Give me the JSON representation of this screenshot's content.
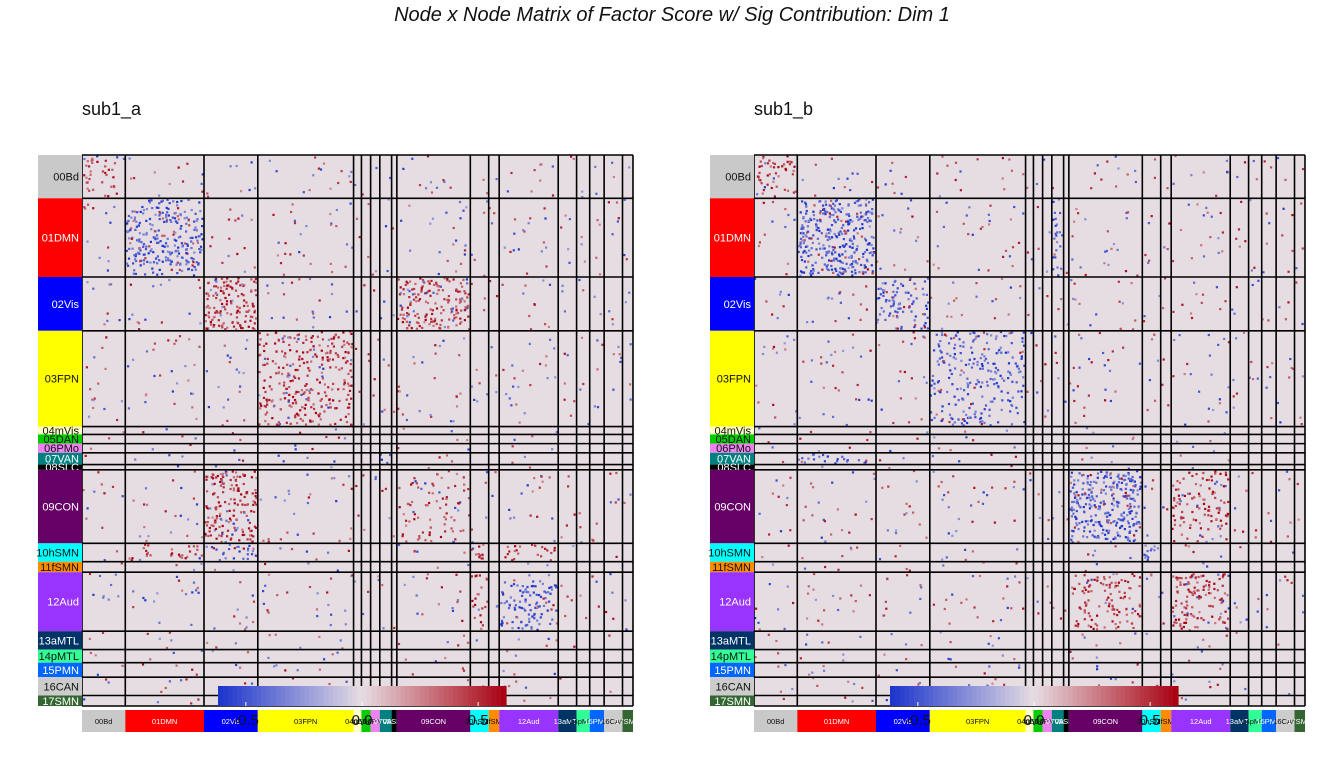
{
  "title": "Node x Node Matrix of Factor Score w/ Sig Contribution: Dim 1",
  "chart_data": [
    {
      "type": "heatmap",
      "panel_title": "sub1_a",
      "legend_ticks": [
        -0.5,
        0.0,
        0.5
      ],
      "legend_tick_labels": [
        "-0.5",
        "0.0",
        "0.5"
      ],
      "color_scale": {
        "low": "#1a33cc",
        "mid": "#e6dde2",
        "high": "#a80010",
        "limits": [
          -0.62,
          0.62
        ]
      },
      "networks": [
        "00Bd",
        "01DMN",
        "02Vis",
        "03FPN",
        "04mVis",
        "05DAN",
        "06PMo",
        "07VAN",
        "08SLC",
        "09CON",
        "10hSMN",
        "11fSMN",
        "12Aud",
        "13aMTL",
        "14pMTL",
        "15PMN",
        "16CAN",
        "17SMN"
      ],
      "network_colors": [
        "#c9c9c9",
        "#ff0000",
        "#0000ff",
        "#ffff00",
        "#ffffcc",
        "#00cc00",
        "#ee82ee",
        "#008080",
        "#000000",
        "#660066",
        "#00ffff",
        "#ff8c00",
        "#9933ff",
        "#003366",
        "#33ff99",
        "#0066ff",
        "#cccccc",
        "#336633"
      ],
      "block_summary_values": [
        [
          0.15,
          0,
          0,
          0,
          0,
          0,
          0,
          0,
          0,
          0,
          0,
          0,
          0,
          0,
          0,
          0,
          0,
          0
        ],
        [
          0,
          -0.35,
          0,
          0,
          0,
          0,
          0,
          0,
          0,
          0,
          0,
          0,
          0,
          0,
          0,
          0,
          0,
          0
        ],
        [
          0,
          0,
          0.4,
          0,
          0,
          0,
          0,
          0,
          0,
          0.35,
          0,
          0,
          0,
          0,
          0,
          0,
          0,
          0
        ],
        [
          0,
          0,
          0,
          0.25,
          0,
          0,
          0,
          0,
          0,
          0,
          0,
          0,
          0,
          0,
          0,
          0,
          0,
          0
        ],
        [
          0,
          0,
          0,
          0,
          0,
          0,
          0,
          0,
          0,
          0,
          0,
          0,
          0,
          0,
          0,
          0,
          0,
          0
        ],
        [
          0,
          0,
          0,
          0,
          0,
          0,
          0,
          0,
          0,
          0,
          0,
          0,
          0,
          0,
          0,
          0,
          0,
          0
        ],
        [
          0,
          0,
          0,
          0,
          0,
          0,
          0,
          0,
          0,
          0,
          0,
          0,
          0,
          0,
          0,
          0,
          0,
          0
        ],
        [
          0,
          0,
          0,
          0,
          0,
          0,
          0,
          -0.25,
          0,
          0,
          0,
          0,
          0,
          0,
          0,
          0,
          0,
          0
        ],
        [
          0,
          0,
          0,
          0,
          0,
          0,
          0,
          0,
          0,
          0,
          0,
          0,
          0,
          0,
          0,
          0,
          0,
          0
        ],
        [
          0,
          0,
          0.35,
          0,
          0,
          0,
          0,
          0,
          0,
          0.1,
          0,
          0,
          0,
          0,
          0,
          0,
          0,
          0
        ],
        [
          0,
          0.15,
          -0.2,
          0,
          0,
          0,
          0,
          0,
          0,
          0,
          0.3,
          0,
          0.15,
          0,
          0,
          0,
          0,
          0
        ],
        [
          0,
          0,
          0,
          0,
          0,
          0,
          0,
          0,
          0,
          0,
          0,
          0,
          0,
          0,
          0,
          0,
          0,
          0
        ],
        [
          0,
          0,
          0,
          0,
          0,
          0,
          0,
          0,
          0,
          0,
          0.15,
          0,
          -0.25,
          0,
          0,
          0,
          0,
          0
        ],
        [
          0,
          0,
          0,
          0,
          0,
          0,
          0,
          0,
          0,
          0,
          0,
          0,
          0,
          0,
          0,
          0,
          0,
          0
        ],
        [
          0,
          0,
          0,
          0,
          0,
          0,
          0,
          0,
          0,
          0,
          0,
          0,
          0,
          0,
          0,
          0,
          0,
          0
        ],
        [
          0,
          0,
          0,
          0,
          0,
          0,
          0,
          0,
          0,
          0,
          0,
          0,
          0,
          0,
          0,
          0,
          0,
          0
        ],
        [
          0,
          0,
          0,
          0,
          0,
          0,
          0,
          0,
          0,
          0,
          0,
          0,
          0,
          0,
          0,
          0,
          0,
          0
        ],
        [
          0,
          0,
          0,
          0,
          0,
          0,
          0,
          0,
          0,
          0,
          0,
          0,
          0,
          0,
          0,
          0,
          0,
          0
        ]
      ]
    },
    {
      "type": "heatmap",
      "panel_title": "sub1_b",
      "legend_ticks": [
        -0.5,
        0.0,
        0.5
      ],
      "legend_tick_labels": [
        "-0.5",
        "0.0",
        "0.5"
      ],
      "color_scale": {
        "low": "#1a33cc",
        "mid": "#e6dde2",
        "high": "#a80010",
        "limits": [
          -0.62,
          0.62
        ]
      },
      "networks": [
        "00Bd",
        "01DMN",
        "02Vis",
        "03FPN",
        "04mVis",
        "05DAN",
        "06PMo",
        "07VAN",
        "08SLC",
        "09CON",
        "10hSMN",
        "11fSMN",
        "12Aud",
        "13aMTL",
        "14pMTL",
        "15PMN",
        "16CAN",
        "17SMN"
      ],
      "network_colors": [
        "#c9c9c9",
        "#ff0000",
        "#0000ff",
        "#ffff00",
        "#ffffcc",
        "#00cc00",
        "#ee82ee",
        "#008080",
        "#000000",
        "#660066",
        "#00ffff",
        "#ff8c00",
        "#9933ff",
        "#003366",
        "#33ff99",
        "#0066ff",
        "#cccccc",
        "#336633"
      ],
      "block_summary_values": [
        [
          0.2,
          0,
          0,
          0,
          0,
          0,
          0,
          0,
          0,
          0,
          0,
          0,
          0,
          0,
          0,
          0,
          0,
          0
        ],
        [
          0,
          -0.45,
          0,
          0,
          0,
          0,
          0,
          -0.2,
          0,
          0,
          0,
          0,
          0,
          0,
          0,
          0,
          0,
          0
        ],
        [
          0,
          0,
          -0.25,
          0,
          0,
          0,
          0,
          0,
          0,
          0,
          0,
          0,
          0,
          0,
          0,
          0,
          0,
          0
        ],
        [
          0,
          0,
          0,
          -0.2,
          0,
          0,
          0,
          0,
          0,
          0,
          0,
          0,
          0,
          0,
          0,
          0,
          0,
          0
        ],
        [
          0,
          0,
          0,
          0,
          0,
          0,
          0,
          0,
          0,
          0,
          0,
          0,
          0,
          0,
          0,
          0,
          0,
          0
        ],
        [
          0,
          0,
          0,
          0,
          0,
          0,
          0,
          0,
          0,
          0,
          0,
          0,
          0,
          0,
          0,
          0,
          0,
          0
        ],
        [
          0,
          0,
          0,
          0,
          0,
          0,
          0,
          0,
          0,
          0,
          0,
          0,
          0,
          0,
          0,
          0,
          0,
          0
        ],
        [
          0,
          -0.2,
          0,
          0,
          0,
          0,
          0,
          0,
          0,
          0,
          0,
          0,
          0,
          0,
          0,
          0,
          0,
          0
        ],
        [
          0,
          0,
          0,
          0,
          0,
          0,
          0,
          0,
          0,
          0,
          0,
          0,
          0,
          0,
          0,
          0,
          0,
          0
        ],
        [
          0,
          0,
          0,
          0,
          0,
          0,
          0,
          0,
          0,
          -0.45,
          0,
          0,
          0.2,
          0,
          0,
          0,
          0,
          0
        ],
        [
          0,
          0,
          0,
          0,
          0,
          0,
          0,
          0,
          0,
          0,
          -0.3,
          0,
          0,
          0,
          0,
          0,
          0,
          0
        ],
        [
          0,
          0,
          0,
          0,
          0,
          0,
          0,
          0,
          0,
          0,
          0,
          0,
          0,
          0,
          0,
          0,
          0,
          0
        ],
        [
          0,
          0,
          0,
          0,
          0,
          0,
          0,
          0,
          0,
          0.2,
          0,
          0,
          0.3,
          0,
          0,
          0,
          0,
          0
        ],
        [
          0,
          0,
          0,
          0,
          0,
          0,
          0,
          0,
          0,
          0,
          0,
          0,
          0,
          0,
          0,
          0,
          0,
          0
        ],
        [
          0,
          0,
          0,
          0,
          0,
          0,
          0,
          0,
          0,
          0,
          0,
          0,
          0,
          0,
          0,
          0,
          0,
          0
        ],
        [
          0,
          0,
          0,
          0,
          0,
          0,
          0,
          0,
          0,
          0,
          0,
          0,
          0,
          0,
          0,
          0,
          0,
          0
        ],
        [
          0,
          0,
          0,
          0,
          0,
          0,
          0,
          0,
          0,
          0,
          0,
          0,
          0,
          0,
          0,
          0,
          0,
          0
        ],
        [
          0,
          0,
          0,
          0,
          0,
          0,
          0,
          0,
          0,
          0,
          0,
          0,
          0,
          0,
          0,
          0,
          0,
          0
        ]
      ]
    }
  ]
}
